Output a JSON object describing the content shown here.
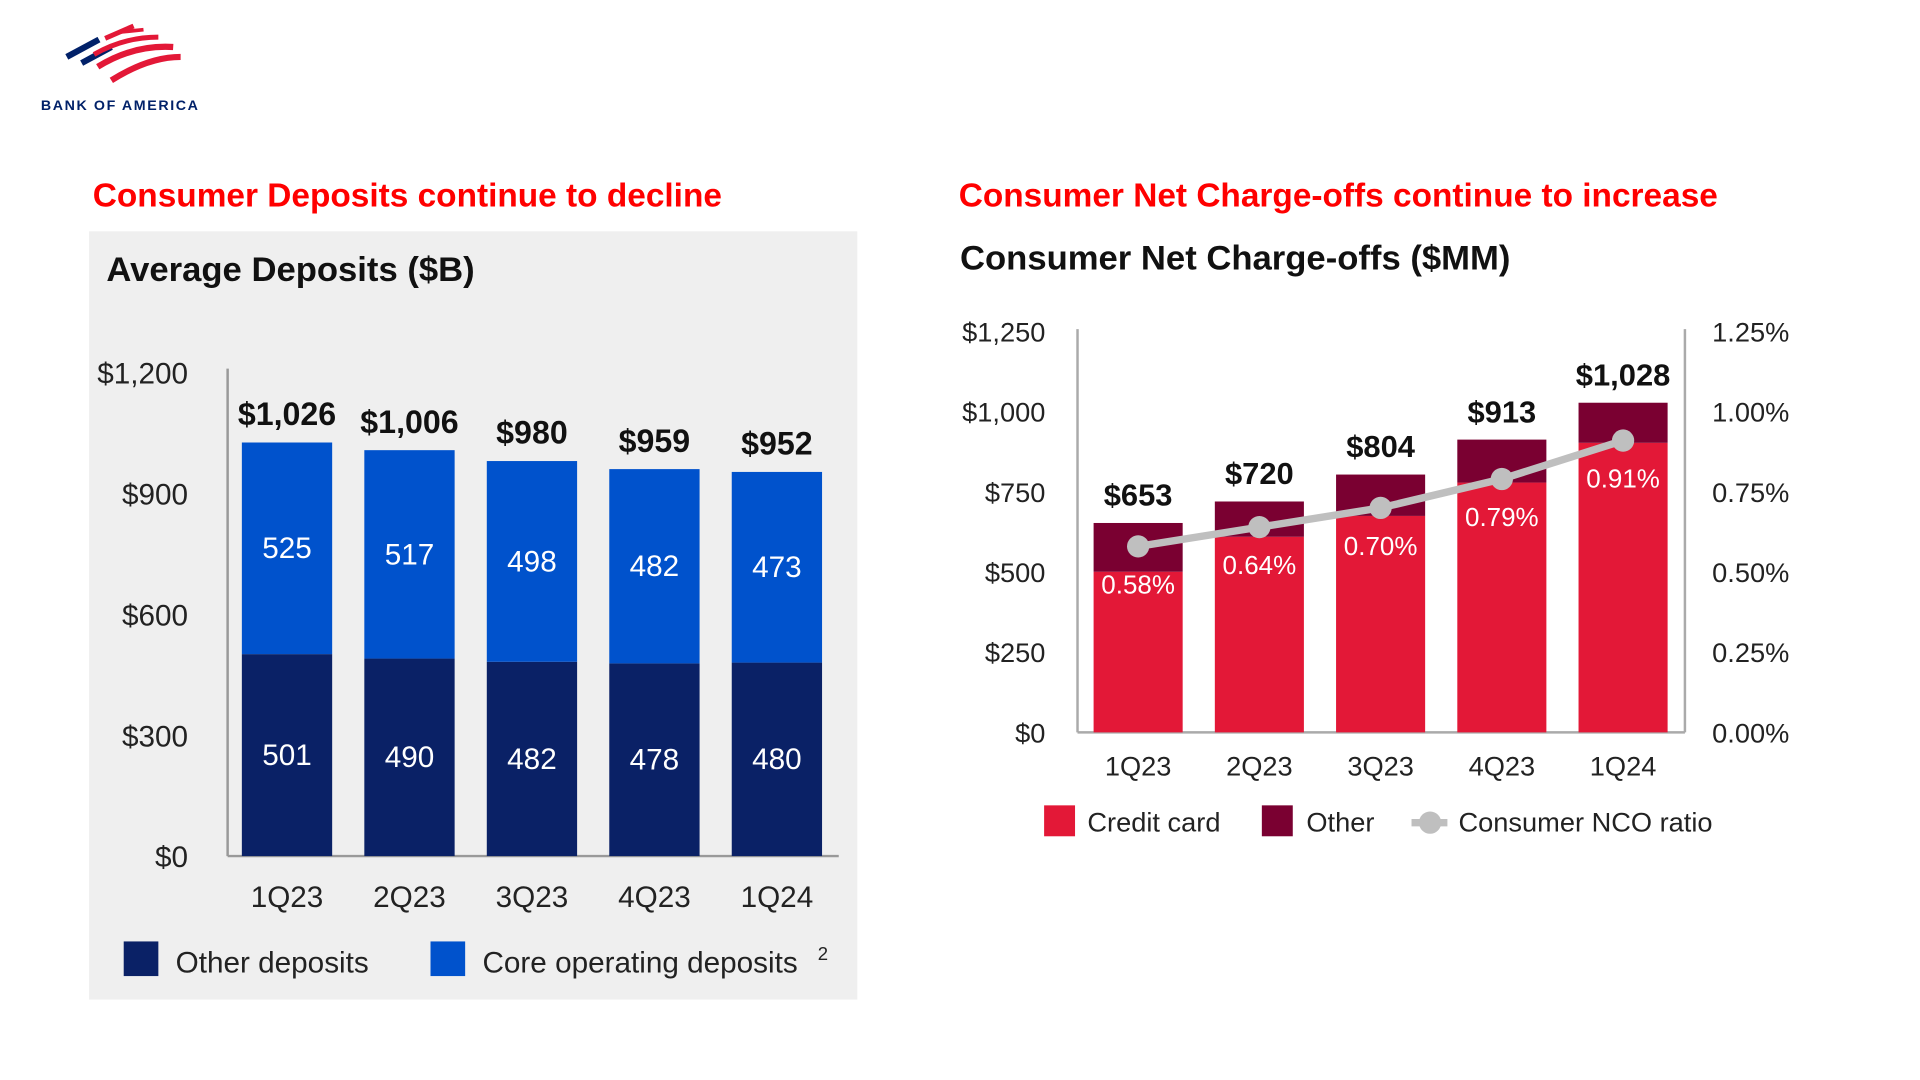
{
  "logo": {
    "text": "BANK OF AMERICA"
  },
  "left": {
    "headline": "Consumer Deposits continue to decline"
  },
  "right": {
    "headline": "Consumer Net Charge-offs continue to increase"
  },
  "chart_data": [
    {
      "type": "bar",
      "stacked": true,
      "title": "Average Deposits ($B)",
      "categories": [
        "1Q23",
        "2Q23",
        "3Q23",
        "4Q23",
        "1Q24"
      ],
      "ylim": [
        0,
        1200
      ],
      "yticks": [
        0,
        300,
        600,
        900,
        1200
      ],
      "ytick_labels": [
        "$0",
        "$300",
        "$600",
        "$900",
        "$1,200"
      ],
      "series": [
        {
          "name": "Other deposits",
          "color": "#0a2166",
          "values": [
            501,
            490,
            482,
            478,
            480
          ]
        },
        {
          "name": "Core operating deposits",
          "superscript": "2",
          "color": "#0052cc",
          "values": [
            525,
            517,
            498,
            482,
            473
          ]
        }
      ],
      "totals": [
        1026,
        1006,
        980,
        959,
        952
      ],
      "total_labels": [
        "$1,026",
        "$1,006",
        "$980",
        "$959",
        "$952"
      ],
      "legend": "bottom"
    },
    {
      "type": "bar",
      "stacked": true,
      "title": "Consumer Net Charge-offs ($MM)",
      "categories": [
        "1Q23",
        "2Q23",
        "3Q23",
        "4Q23",
        "1Q24"
      ],
      "ylim": [
        0,
        1250
      ],
      "yticks": [
        0,
        250,
        500,
        750,
        1000,
        1250
      ],
      "ytick_labels": [
        "$0",
        "$250",
        "$500",
        "$750",
        "$1,000",
        "$1,250"
      ],
      "y2lim": [
        0,
        1.25
      ],
      "y2ticks": [
        0,
        0.25,
        0.5,
        0.75,
        1.0,
        1.25
      ],
      "y2tick_labels": [
        "0.00%",
        "0.25%",
        "0.50%",
        "0.75%",
        "1.00%",
        "1.25%"
      ],
      "series": [
        {
          "name": "Credit card",
          "color": "#e31837",
          "values": [
            501,
            610,
            675,
            779,
            903
          ]
        },
        {
          "name": "Other",
          "color": "#7a0031",
          "values": [
            152,
            110,
            129,
            134,
            125
          ]
        }
      ],
      "totals": [
        653,
        720,
        804,
        913,
        1028
      ],
      "total_labels": [
        "$653",
        "$720",
        "$804",
        "$913",
        "$1,028"
      ],
      "line": {
        "name": "Consumer NCO ratio",
        "color": "#bfbfbf",
        "axis": "right",
        "values": [
          0.58,
          0.64,
          0.7,
          0.79,
          0.91
        ],
        "labels": [
          "0.58%",
          "0.64%",
          "0.70%",
          "0.79%",
          "0.91%"
        ]
      },
      "legend": "bottom"
    }
  ]
}
